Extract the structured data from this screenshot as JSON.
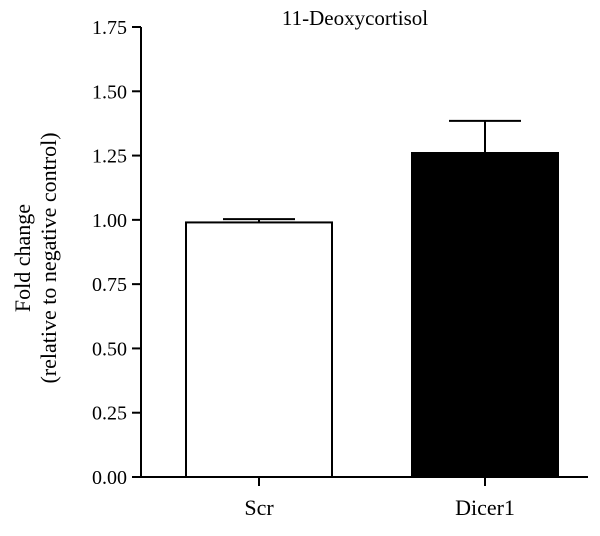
{
  "chart_data": {
    "type": "bar",
    "title": "11-Deoxycortisol",
    "ylabel_line1": "Fold change",
    "ylabel_line2": "(relative to negative control)",
    "xlabel": "",
    "categories": [
      "Scr",
      "Dicer1"
    ],
    "values": [
      0.99,
      1.26
    ],
    "errors": [
      0.013,
      0.125
    ],
    "bar_fills": [
      "#ffffff",
      "#000000"
    ],
    "bar_stroke": "#000000",
    "ylim": [
      0,
      1.75
    ],
    "yticks": [
      0,
      0.25,
      0.5,
      0.75,
      1.0,
      1.25,
      1.5,
      1.75
    ],
    "ytick_labels": [
      "0.00",
      "0.25",
      "0.50",
      "0.75",
      "1.00",
      "1.25",
      "1.50",
      "1.75"
    ],
    "grid": false,
    "legend": "none"
  }
}
